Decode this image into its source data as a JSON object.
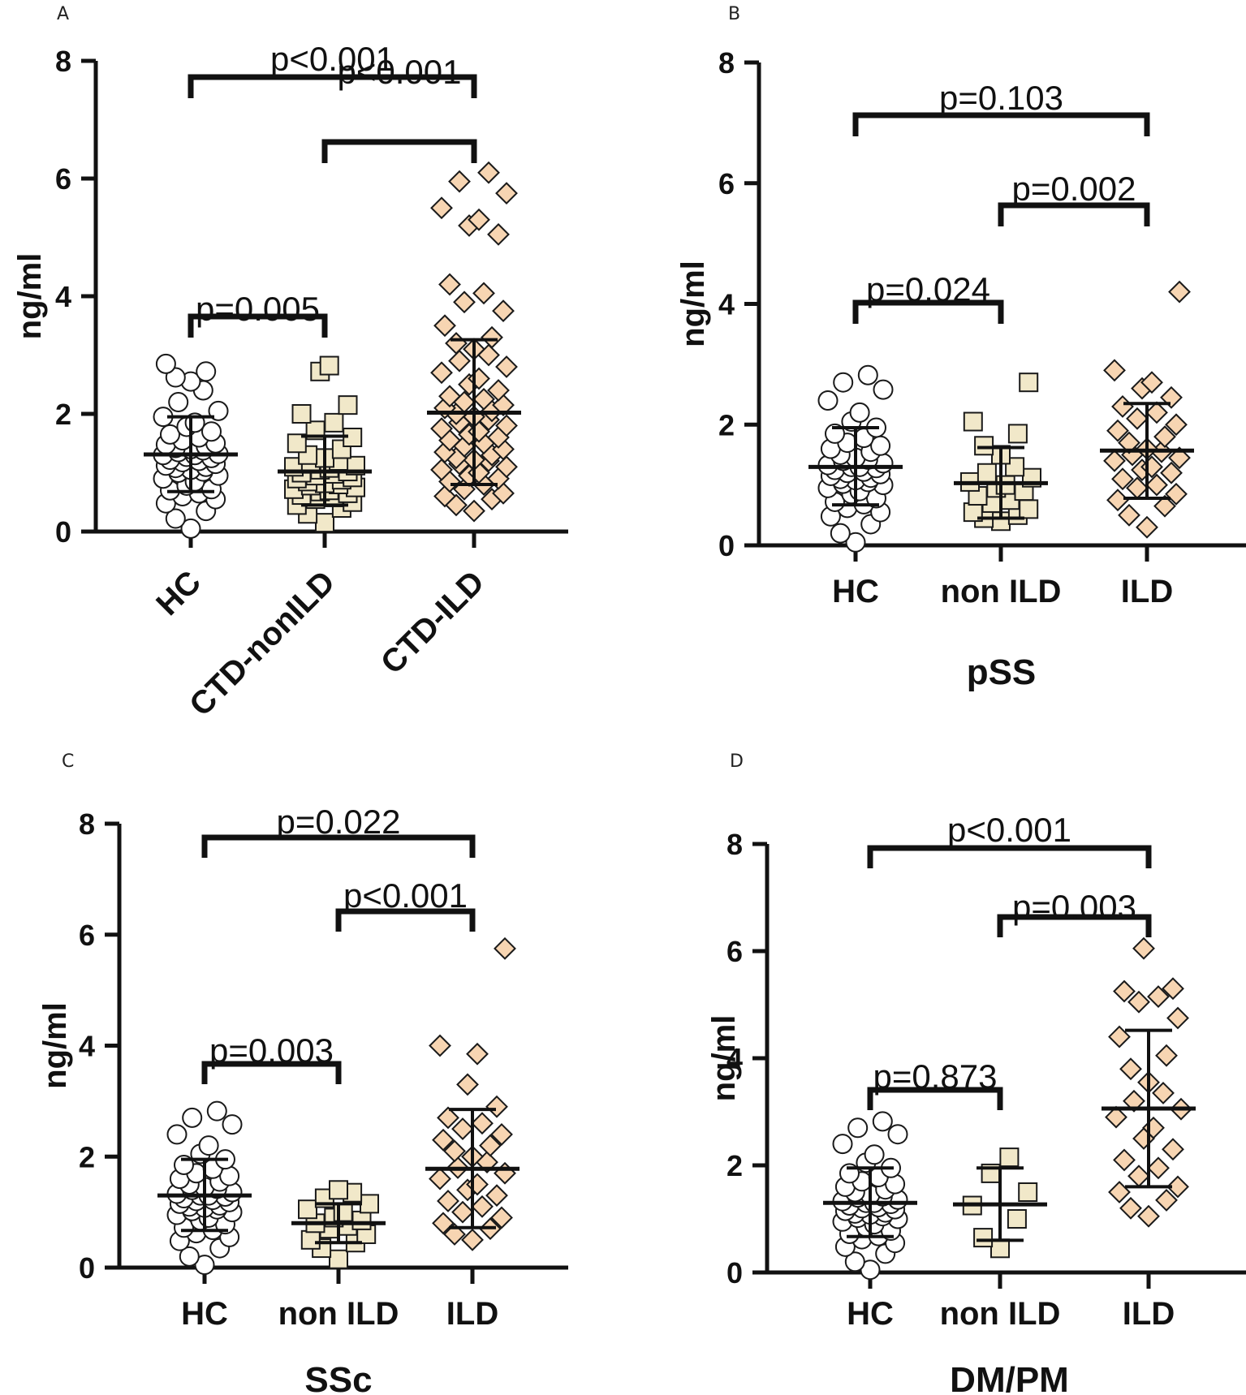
{
  "figure": {
    "colors": {
      "hc_fill": "#ffffff",
      "group_fill": "#f1e8c9",
      "ild_fill": "#f7d5b2",
      "stroke": "#1a1a1a"
    },
    "marker_shapes": {
      "HC": "circle",
      "nonILD": "square",
      "ILD": "diamond"
    }
  },
  "chart_data": [
    {
      "id": "A",
      "panel_label": "A",
      "type": "scatter",
      "categories": [
        "HC",
        "CTD-nonILD",
        "CTD-ILD"
      ],
      "ylabel": "ng/ml",
      "xlabel": "",
      "ylim": [
        0,
        8
      ],
      "yticks": [
        0,
        2,
        4,
        6,
        8
      ],
      "rotated_labels": true,
      "series": [
        {
          "name": "HC",
          "mean": 1.31,
          "sd_low": 0.68,
          "sd_high": 1.95,
          "values": [
            0.05,
            0.22,
            0.35,
            0.48,
            0.55,
            0.6,
            0.65,
            0.7,
            0.72,
            0.78,
            0.85,
            0.9,
            0.95,
            1.0,
            1.02,
            1.05,
            1.08,
            1.1,
            1.12,
            1.15,
            1.18,
            1.2,
            1.22,
            1.25,
            1.27,
            1.3,
            1.3,
            1.32,
            1.35,
            1.38,
            1.4,
            1.42,
            1.45,
            1.48,
            1.5,
            1.55,
            1.6,
            1.65,
            1.7,
            1.78,
            1.85,
            1.95,
            2.05,
            2.2,
            2.4,
            2.55,
            2.62,
            2.72,
            2.85
          ]
        },
        {
          "name": "CTD-nonILD",
          "mean": 1.02,
          "sd_low": 0.45,
          "sd_high": 1.62,
          "values": [
            0.15,
            0.3,
            0.4,
            0.45,
            0.5,
            0.55,
            0.58,
            0.62,
            0.65,
            0.68,
            0.7,
            0.72,
            0.75,
            0.78,
            0.8,
            0.82,
            0.85,
            0.88,
            0.9,
            0.92,
            0.95,
            0.98,
            1.0,
            1.02,
            1.05,
            1.08,
            1.1,
            1.12,
            1.15,
            1.2,
            1.25,
            1.3,
            1.4,
            1.5,
            1.6,
            1.72,
            1.85,
            2.0,
            2.15,
            2.72,
            2.82
          ]
        },
        {
          "name": "CTD-ILD",
          "mean": 2.02,
          "sd_low": 0.8,
          "sd_high": 3.26,
          "values": [
            0.35,
            0.45,
            0.55,
            0.6,
            0.65,
            0.72,
            0.8,
            0.85,
            0.9,
            0.95,
            1.0,
            1.05,
            1.1,
            1.15,
            1.2,
            1.22,
            1.25,
            1.3,
            1.35,
            1.4,
            1.45,
            1.5,
            1.55,
            1.6,
            1.65,
            1.7,
            1.75,
            1.8,
            1.85,
            1.9,
            1.95,
            2.0,
            2.05,
            2.1,
            2.15,
            2.2,
            2.25,
            2.3,
            2.4,
            2.5,
            2.6,
            2.7,
            2.8,
            2.9,
            3.0,
            3.1,
            3.2,
            3.3,
            3.5,
            3.75,
            3.9,
            4.05,
            4.2,
            5.05,
            5.2,
            5.3,
            5.5,
            5.75,
            5.95,
            6.1
          ]
        }
      ],
      "comparisons": [
        {
          "from": 0,
          "to": 1,
          "label": "p=0.005"
        },
        {
          "from": 1,
          "to": 2,
          "label": "p<0.001"
        },
        {
          "from": 0,
          "to": 2,
          "label": "p<0.001"
        }
      ]
    },
    {
      "id": "B",
      "panel_label": "B",
      "type": "scatter",
      "categories": [
        "HC",
        "non ILD",
        "ILD"
      ],
      "ylabel": "ng/ml",
      "xlabel": "pSS",
      "ylim": [
        0,
        8
      ],
      "yticks": [
        0,
        2,
        4,
        6,
        8
      ],
      "rotated_labels": false,
      "series": [
        {
          "name": "HC",
          "mean": 1.3,
          "sd_low": 0.67,
          "sd_high": 1.95,
          "values": [
            0.05,
            0.2,
            0.35,
            0.48,
            0.55,
            0.62,
            0.68,
            0.72,
            0.78,
            0.85,
            0.9,
            0.95,
            1.0,
            1.02,
            1.05,
            1.08,
            1.1,
            1.12,
            1.15,
            1.18,
            1.2,
            1.22,
            1.25,
            1.28,
            1.3,
            1.3,
            1.33,
            1.36,
            1.4,
            1.42,
            1.45,
            1.5,
            1.55,
            1.6,
            1.65,
            1.7,
            1.78,
            1.85,
            1.95,
            2.05,
            2.2,
            2.4,
            2.58,
            2.7,
            2.82
          ]
        },
        {
          "name": "non ILD",
          "mean": 1.03,
          "sd_low": 0.45,
          "sd_high": 1.62,
          "values": [
            0.4,
            0.45,
            0.5,
            0.55,
            0.6,
            0.7,
            0.75,
            0.82,
            0.9,
            0.95,
            1.0,
            1.05,
            1.12,
            1.2,
            1.3,
            1.5,
            1.65,
            1.85,
            2.05,
            2.7
          ]
        },
        {
          "name": "ILD",
          "mean": 1.57,
          "sd_low": 0.78,
          "sd_high": 2.35,
          "values": [
            0.3,
            0.5,
            0.65,
            0.75,
            0.85,
            0.95,
            1.0,
            1.1,
            1.2,
            1.25,
            1.3,
            1.4,
            1.45,
            1.5,
            1.55,
            1.6,
            1.7,
            1.8,
            1.9,
            2.0,
            2.1,
            2.2,
            2.3,
            2.45,
            2.6,
            2.7,
            2.9,
            4.2
          ]
        }
      ],
      "comparisons": [
        {
          "from": 0,
          "to": 1,
          "label": "p=0.024"
        },
        {
          "from": 1,
          "to": 2,
          "label": "p=0.002"
        },
        {
          "from": 0,
          "to": 2,
          "label": "p=0.103"
        }
      ]
    },
    {
      "id": "C",
      "panel_label": "C",
      "type": "scatter",
      "categories": [
        "HC",
        "non ILD",
        "ILD"
      ],
      "ylabel": "ng/ml",
      "xlabel": "SSc",
      "ylim": [
        0,
        8
      ],
      "yticks": [
        0,
        2,
        4,
        6,
        8
      ],
      "rotated_labels": false,
      "series": [
        {
          "name": "HC",
          "mean": 1.3,
          "sd_low": 0.67,
          "sd_high": 1.95,
          "values": [
            0.05,
            0.2,
            0.35,
            0.48,
            0.55,
            0.62,
            0.68,
            0.72,
            0.78,
            0.85,
            0.9,
            0.95,
            1.0,
            1.02,
            1.05,
            1.08,
            1.1,
            1.12,
            1.15,
            1.18,
            1.2,
            1.22,
            1.25,
            1.28,
            1.3,
            1.3,
            1.33,
            1.36,
            1.4,
            1.42,
            1.45,
            1.5,
            1.55,
            1.6,
            1.65,
            1.7,
            1.78,
            1.85,
            1.95,
            2.05,
            2.2,
            2.4,
            2.58,
            2.7,
            2.82
          ]
        },
        {
          "name": "non ILD",
          "mean": 0.8,
          "sd_low": 0.45,
          "sd_high": 1.15,
          "values": [
            0.15,
            0.35,
            0.45,
            0.5,
            0.6,
            0.7,
            0.75,
            0.8,
            0.85,
            0.9,
            1.0,
            1.05,
            1.15,
            1.25,
            1.35,
            1.4
          ]
        },
        {
          "name": "ILD",
          "mean": 1.78,
          "sd_low": 0.72,
          "sd_high": 2.85,
          "values": [
            0.5,
            0.6,
            0.7,
            0.8,
            0.9,
            1.0,
            1.1,
            1.2,
            1.3,
            1.4,
            1.5,
            1.6,
            1.7,
            1.8,
            1.9,
            2.0,
            2.1,
            2.2,
            2.3,
            2.4,
            2.5,
            2.6,
            2.7,
            2.9,
            3.3,
            3.85,
            4.0,
            5.75
          ]
        }
      ],
      "comparisons": [
        {
          "from": 0,
          "to": 1,
          "label": "p=0.003"
        },
        {
          "from": 1,
          "to": 2,
          "label": "p<0.001"
        },
        {
          "from": 0,
          "to": 2,
          "label": "p=0.022"
        }
      ]
    },
    {
      "id": "D",
      "panel_label": "D",
      "type": "scatter",
      "categories": [
        "HC",
        "non ILD",
        "ILD"
      ],
      "ylabel": "ng/ml",
      "xlabel": "DM/PM",
      "ylim": [
        0,
        8
      ],
      "yticks": [
        0,
        2,
        4,
        6,
        8
      ],
      "rotated_labels": false,
      "series": [
        {
          "name": "HC",
          "mean": 1.3,
          "sd_low": 0.67,
          "sd_high": 1.95,
          "values": [
            0.05,
            0.2,
            0.35,
            0.48,
            0.55,
            0.62,
            0.68,
            0.72,
            0.78,
            0.85,
            0.9,
            0.95,
            1.0,
            1.02,
            1.05,
            1.08,
            1.1,
            1.12,
            1.15,
            1.18,
            1.2,
            1.22,
            1.25,
            1.28,
            1.3,
            1.3,
            1.33,
            1.36,
            1.4,
            1.42,
            1.45,
            1.5,
            1.55,
            1.6,
            1.65,
            1.7,
            1.78,
            1.85,
            1.95,
            2.05,
            2.2,
            2.4,
            2.58,
            2.7,
            2.82
          ]
        },
        {
          "name": "non ILD",
          "mean": 1.27,
          "sd_low": 0.6,
          "sd_high": 1.95,
          "values": [
            0.45,
            0.65,
            1.0,
            1.25,
            1.5,
            1.85,
            2.15
          ]
        },
        {
          "name": "ILD",
          "mean": 3.06,
          "sd_low": 1.6,
          "sd_high": 4.52,
          "values": [
            1.05,
            1.2,
            1.35,
            1.5,
            1.6,
            1.8,
            1.95,
            2.1,
            2.3,
            2.5,
            2.7,
            2.9,
            3.05,
            3.2,
            3.35,
            3.55,
            3.8,
            4.05,
            4.4,
            4.75,
            5.05,
            5.15,
            5.25,
            5.3,
            6.05
          ]
        }
      ],
      "comparisons": [
        {
          "from": 0,
          "to": 1,
          "label": "p=0.873"
        },
        {
          "from": 1,
          "to": 2,
          "label": "p=0.003"
        },
        {
          "from": 0,
          "to": 2,
          "label": "p<0.001"
        }
      ]
    }
  ]
}
